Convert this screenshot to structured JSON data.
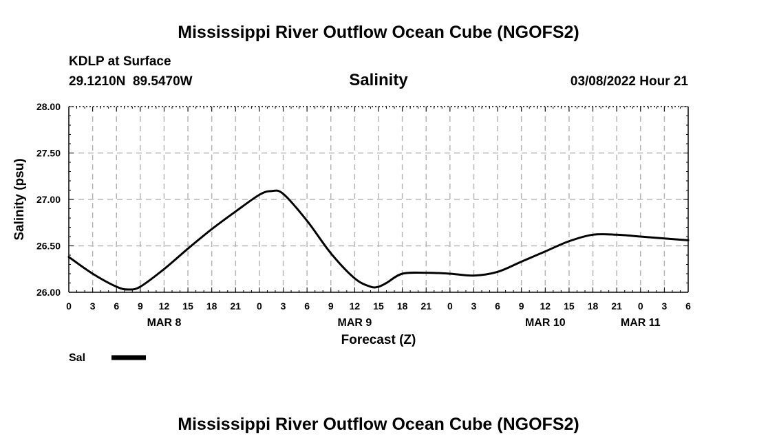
{
  "chart_data": {
    "type": "line",
    "title": "Mississippi River Outflow Ocean Cube (NGOFS2)",
    "footer_title": "Mississippi River Outflow Ocean Cube (NGOFS2)",
    "station": "KDLP at Surface",
    "location": "29.1210N  89.5470W",
    "subtitle": "Salinity",
    "datetime": "03/08/2022 Hour 21",
    "xlabel": "Forecast (Z)",
    "ylabel": "Salinity (psu)",
    "ylim": [
      26.0,
      28.0
    ],
    "y_ticks": [
      26.0,
      26.5,
      27.0,
      27.5,
      28.0
    ],
    "y_tick_labels": [
      "26.00",
      "26.50",
      "27.00",
      "27.50",
      "28.00"
    ],
    "xlim": [
      0,
      78
    ],
    "x_ticks": [
      0,
      3,
      6,
      9,
      12,
      15,
      18,
      21,
      24,
      27,
      30,
      33,
      36,
      39,
      42,
      45,
      48,
      51,
      54,
      57,
      60,
      63,
      66,
      69,
      72,
      75,
      78
    ],
    "x_tick_labels": [
      "0",
      "3",
      "6",
      "9",
      "12",
      "15",
      "18",
      "21",
      "0",
      "3",
      "6",
      "9",
      "12",
      "15",
      "18",
      "21",
      "0",
      "3",
      "6",
      "9",
      "12",
      "15",
      "18",
      "21",
      "0",
      "3",
      "6"
    ],
    "day_labels": [
      {
        "label": "MAR 8",
        "x": 12
      },
      {
        "label": "MAR 9",
        "x": 36
      },
      {
        "label": "MAR 10",
        "x": 60
      },
      {
        "label": "MAR 11",
        "x": 72
      }
    ],
    "grid": true,
    "series": [
      {
        "name": "Sal",
        "color": "#000000",
        "x": [
          0,
          3,
          6,
          7.5,
          9,
          12,
          15,
          18,
          21,
          24,
          25.5,
          27,
          30,
          33,
          36,
          38,
          39,
          40,
          42,
          45,
          48,
          51,
          54,
          57,
          60,
          63,
          66,
          69,
          72,
          75,
          78
        ],
        "values": [
          26.38,
          26.2,
          26.06,
          26.03,
          26.06,
          26.25,
          26.47,
          26.68,
          26.87,
          27.05,
          27.09,
          27.06,
          26.77,
          26.42,
          26.15,
          26.06,
          26.06,
          26.1,
          26.2,
          26.21,
          26.2,
          26.18,
          26.22,
          26.33,
          26.44,
          26.55,
          26.62,
          26.62,
          26.6,
          26.58,
          26.56
        ]
      }
    ]
  },
  "legend": {
    "label": "Sal"
  }
}
